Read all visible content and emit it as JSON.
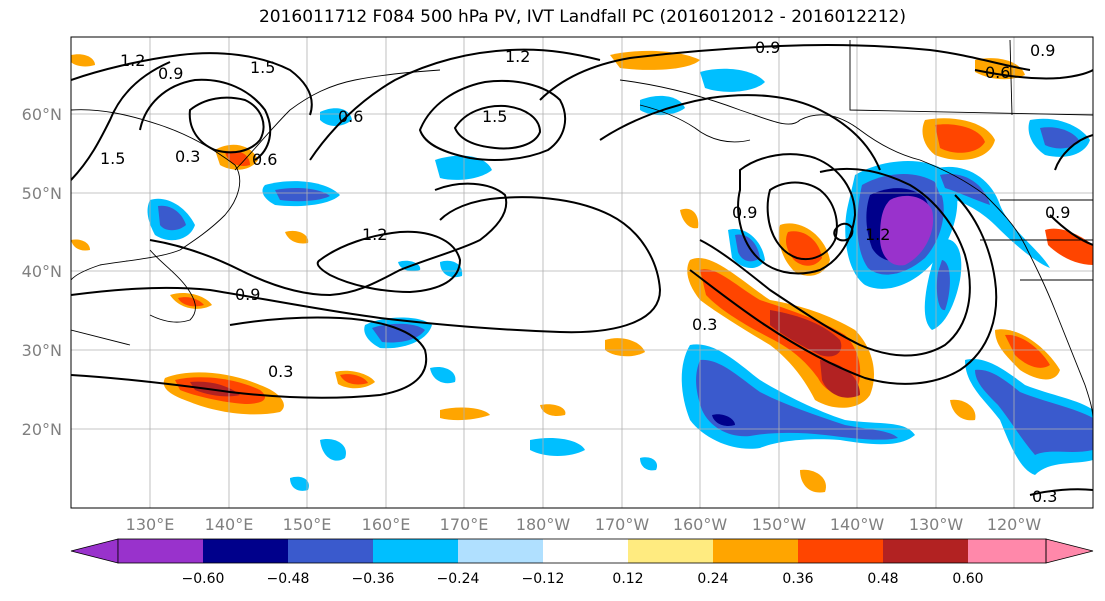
{
  "title": "2016011712 F084 500 hPa PV, IVT Landfall PC (2016012012 - 2016012212)",
  "lon_ticks": [
    "130°E",
    "140°E",
    "150°E",
    "160°E",
    "170°E",
    "180°W",
    "170°W",
    "160°W",
    "150°W",
    "140°W",
    "130°W",
    "120°W"
  ],
  "lat_ticks": [
    "60°N",
    "50°N",
    "40°N",
    "30°N",
    "20°N"
  ],
  "contour_labels": [
    "1.2",
    "0.9",
    "1.5",
    "0.6",
    "1.5",
    "0.3",
    "0.6",
    "1.2",
    "1.5",
    "0.9",
    "0.6",
    "0.9",
    "1.2",
    "0.9",
    "0.3",
    "0.9",
    "1.2",
    "0.3",
    "0.9",
    "0.3"
  ],
  "colorbar": {
    "ticks": [
      "−0.60",
      "−0.48",
      "−0.36",
      "−0.24",
      "−0.12",
      "0.12",
      "0.24",
      "0.36",
      "0.48",
      "0.60"
    ],
    "colors": [
      "#9932cc",
      "#00008b",
      "#3a5acd",
      "#00bfff",
      "#b0e0ff",
      "#ffffff",
      "#ffeb80",
      "#ffa500",
      "#ff4500",
      "#b22222",
      "#ff88aa"
    ]
  }
}
